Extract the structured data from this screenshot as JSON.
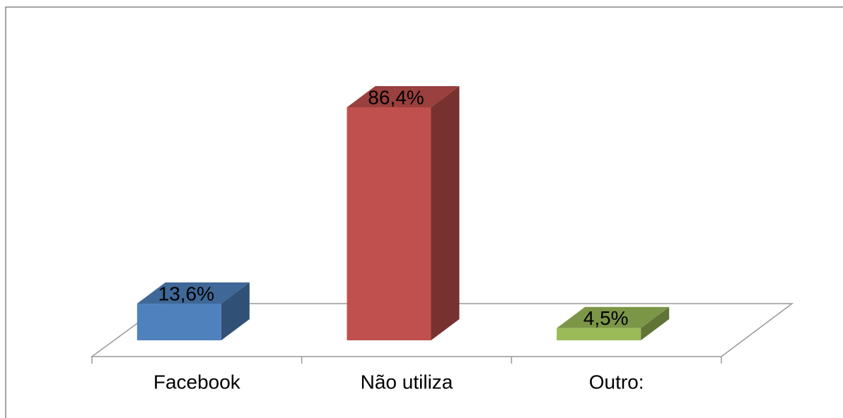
{
  "chart_data": {
    "type": "bar",
    "categories": [
      "Facebook",
      "Não utiliza",
      "Outro:"
    ],
    "values": [
      13.6,
      86.4,
      4.5
    ],
    "value_labels": [
      "13,6%",
      "86,4%",
      "4,5%"
    ],
    "colors": [
      "#4f81bd",
      "#c0504d",
      "#9bbb59"
    ]
  }
}
